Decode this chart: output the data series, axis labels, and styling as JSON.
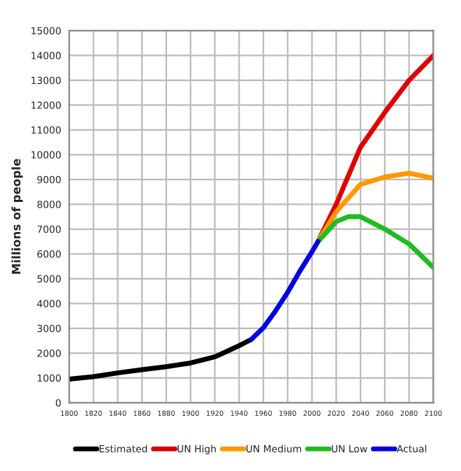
{
  "chart_data": {
    "type": "line",
    "ylabel": "Millions of people",
    "xlim": [
      1800,
      2100
    ],
    "xticks": [
      1800,
      1820,
      1840,
      1860,
      1880,
      1900,
      1920,
      1940,
      1960,
      1980,
      2000,
      2020,
      2040,
      2060,
      2080,
      2100
    ],
    "ylim": [
      0,
      15000
    ],
    "yticks": [
      0,
      1000,
      2000,
      3000,
      4000,
      5000,
      6000,
      7000,
      8000,
      9000,
      10000,
      11000,
      12000,
      13000,
      14000,
      15000
    ],
    "grid": true,
    "legend": "bottom",
    "marker": "none",
    "line_style": "solid",
    "series": [
      {
        "name": "Estimated",
        "color": "#000000",
        "x": [
          1800,
          1820,
          1840,
          1860,
          1880,
          1900,
          1920,
          1930,
          1940,
          1950
        ],
        "values": [
          950,
          1050,
          1200,
          1330,
          1450,
          1600,
          1850,
          2070,
          2300,
          2550
        ]
      },
      {
        "name": "UN High",
        "color": "#dd0000",
        "x": [
          2005,
          2020,
          2040,
          2060,
          2080,
          2100
        ],
        "values": [
          6500,
          8000,
          10300,
          11700,
          13000,
          14000
        ]
      },
      {
        "name": "UN Medium",
        "color": "#ff9900",
        "x": [
          2005,
          2020,
          2040,
          2060,
          2080,
          2100
        ],
        "values": [
          6500,
          7700,
          8800,
          9100,
          9250,
          9050
        ]
      },
      {
        "name": "UN Low",
        "color": "#22bb22",
        "x": [
          2005,
          2020,
          2030,
          2040,
          2060,
          2080,
          2100
        ],
        "values": [
          6500,
          7300,
          7500,
          7500,
          7000,
          6400,
          5450
        ]
      },
      {
        "name": "Actual",
        "color": "#0000dd",
        "x": [
          1950,
          1960,
          1970,
          1980,
          1990,
          2000,
          2005
        ],
        "values": [
          2550,
          3020,
          3700,
          4450,
          5300,
          6080,
          6500
        ]
      }
    ]
  }
}
